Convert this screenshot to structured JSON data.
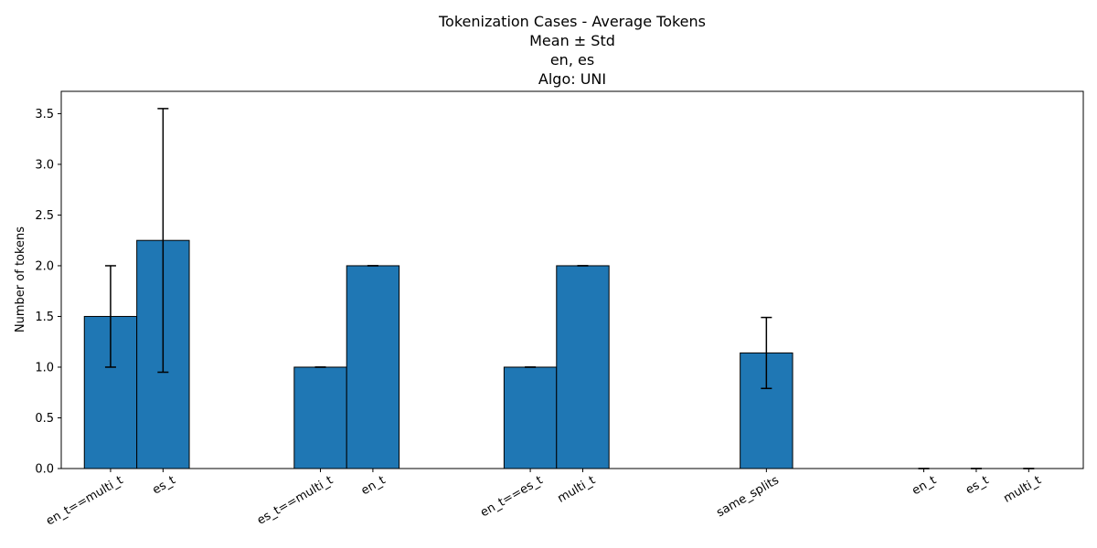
{
  "chart_data": {
    "type": "bar",
    "title_lines": [
      "Tokenization Cases - Average Tokens",
      "Mean ± Std",
      "en, es",
      "Algo: UNI"
    ],
    "ylabel": "Number of tokens",
    "xlabel": "",
    "ylim": [
      0,
      3.72
    ],
    "yticks": [
      "0.0",
      "0.5",
      "1.0",
      "1.5",
      "2.0",
      "2.5",
      "3.0",
      "3.5"
    ],
    "grid": false,
    "bar_color": "#1f77b4",
    "edge_color": "#000000",
    "bars": [
      {
        "label": "en_t==multi_t",
        "x": 0.0,
        "mean": 1.5,
        "std": 0.5
      },
      {
        "label": "es_t",
        "x": 0.5,
        "mean": 2.25,
        "std": 1.3
      },
      {
        "label": "es_t==multi_t",
        "x": 2.0,
        "mean": 1.0,
        "std": 0.0
      },
      {
        "label": "en_t",
        "x": 2.5,
        "mean": 2.0,
        "std": 0.0
      },
      {
        "label": "en_t==es_t",
        "x": 4.0,
        "mean": 1.0,
        "std": 0.0
      },
      {
        "label": "multi_t",
        "x": 4.5,
        "mean": 2.0,
        "std": 0.0
      },
      {
        "label": "same_splits",
        "x": 6.25,
        "mean": 1.14,
        "std": 0.35
      },
      {
        "label": "en_t",
        "x": 7.75,
        "mean": 0.0,
        "std": 0.0
      },
      {
        "label": "es_t",
        "x": 8.25,
        "mean": 0.0,
        "std": 0.0
      },
      {
        "label": "multi_t",
        "x": 8.75,
        "mean": 0.0,
        "std": 0.0
      }
    ],
    "xlim": [
      -0.47,
      9.27
    ]
  }
}
